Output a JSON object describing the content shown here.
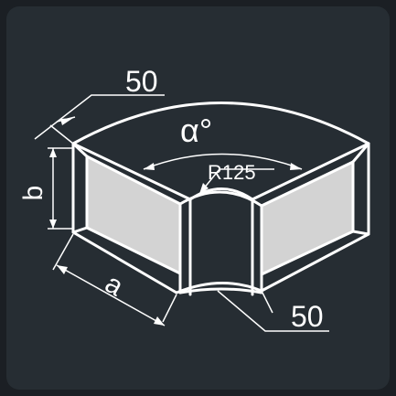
{
  "drawing": {
    "flange_top_label": "50",
    "flange_bottom_label": "50",
    "angle_label": "α°",
    "radius_label": "R125",
    "height_label": "b",
    "width_label": "a"
  },
  "colors": {
    "background": "#262d33",
    "outer_frame": "#1b1f24",
    "line": "#ffffff",
    "inner_face": "#d3d3d3"
  }
}
